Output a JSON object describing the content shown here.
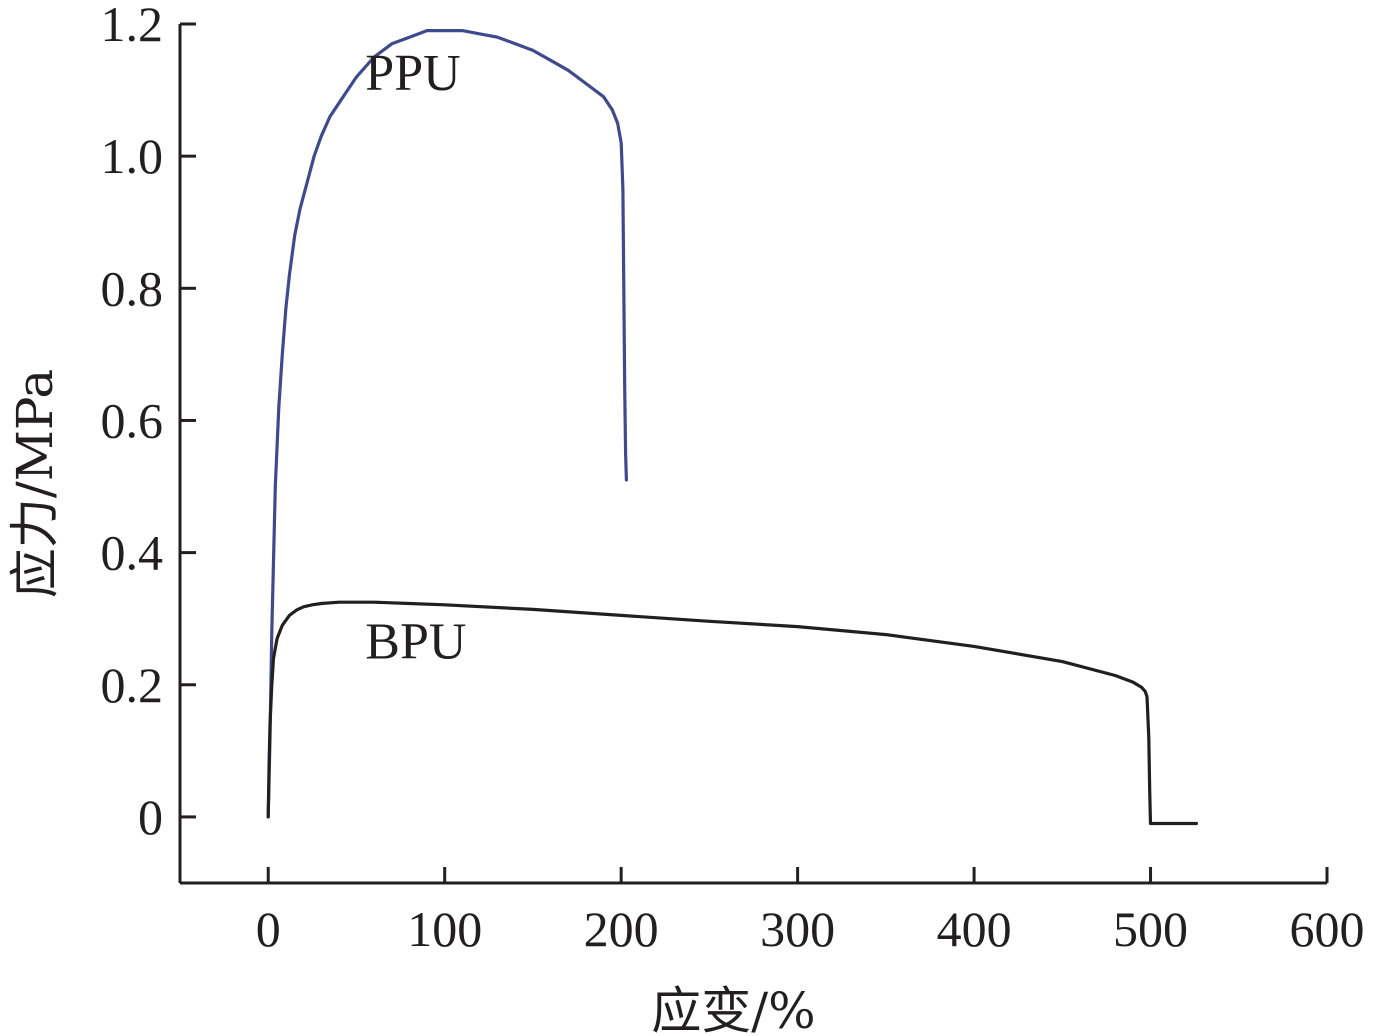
{
  "chart_data": {
    "type": "line",
    "title": "",
    "xlabel": "应变/%",
    "ylabel": "应力/MPa",
    "xlim": [
      -50,
      600
    ],
    "ylim": [
      -0.1,
      1.2
    ],
    "xticks": [
      0,
      100,
      200,
      300,
      400,
      500,
      600
    ],
    "yticks": [
      0,
      0.2,
      0.4,
      0.6,
      0.8,
      1.0,
      1.2
    ],
    "xtick_labels": [
      "0",
      "100",
      "200",
      "300",
      "400",
      "500",
      "600"
    ],
    "ytick_labels": [
      "0",
      "0.2",
      "0.4",
      "0.6",
      "0.8",
      "1.0",
      "1.2"
    ],
    "grid": false,
    "legend": "none",
    "series": [
      {
        "name": "PPU",
        "color": "#3f4a8c",
        "x": [
          0,
          1,
          2,
          4,
          6,
          8,
          10,
          12,
          15,
          18,
          22,
          26,
          30,
          35,
          40,
          45,
          50,
          60,
          70,
          80,
          90,
          100,
          110,
          120,
          130,
          140,
          150,
          160,
          170,
          180,
          190,
          195,
          198,
          200,
          201,
          201.5,
          202,
          202.5,
          203
        ],
        "y": [
          0,
          0.12,
          0.28,
          0.5,
          0.62,
          0.7,
          0.77,
          0.82,
          0.88,
          0.92,
          0.96,
          1.0,
          1.03,
          1.06,
          1.08,
          1.1,
          1.12,
          1.15,
          1.17,
          1.18,
          1.19,
          1.19,
          1.19,
          1.185,
          1.18,
          1.17,
          1.16,
          1.145,
          1.13,
          1.11,
          1.09,
          1.07,
          1.05,
          1.02,
          0.95,
          0.8,
          0.65,
          0.55,
          0.51
        ]
      },
      {
        "name": "BPU",
        "color": "#231f20",
        "x": [
          0,
          0.5,
          1,
          2,
          3,
          5,
          8,
          12,
          16,
          20,
          25,
          30,
          40,
          50,
          60,
          80,
          100,
          150,
          200,
          250,
          300,
          350,
          400,
          450,
          480,
          490,
          495,
          497,
          498,
          499,
          499.5,
          500,
          500.5,
          510,
          520,
          526
        ],
        "y": [
          0,
          0.08,
          0.14,
          0.2,
          0.24,
          0.27,
          0.29,
          0.305,
          0.313,
          0.318,
          0.321,
          0.323,
          0.325,
          0.325,
          0.325,
          0.323,
          0.321,
          0.314,
          0.305,
          0.296,
          0.288,
          0.276,
          0.258,
          0.235,
          0.214,
          0.204,
          0.196,
          0.19,
          0.182,
          0.12,
          0.04,
          -0.01,
          -0.01,
          -0.01,
          -0.01,
          -0.01
        ]
      }
    ],
    "annotations": [
      {
        "text": "PPU",
        "x": 55,
        "y": 1.1
      },
      {
        "text": "BPU",
        "x": 55,
        "y": 0.24
      }
    ]
  }
}
